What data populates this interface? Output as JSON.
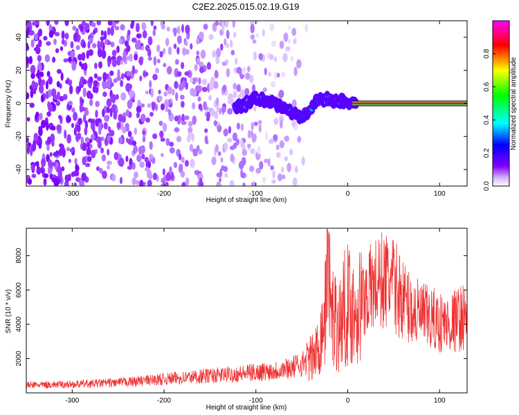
{
  "title": "C2E2.2025.015.02.19.G19",
  "chart_data": [
    {
      "type": "heatmap",
      "xlabel": "Height of straight line (km)",
      "ylabel": "Frequency (Hz)",
      "xlim": [
        -350,
        130
      ],
      "ylim": [
        -50,
        50
      ],
      "xticks": [
        -300,
        -200,
        -100,
        0,
        100
      ],
      "yticks": [
        -40,
        -20,
        0,
        20,
        40
      ],
      "colorbar": {
        "label": "Normalized spectral amplitude",
        "range": [
          0,
          1
        ],
        "ticks": [
          0.0,
          0.2,
          0.4,
          0.6,
          0.8
        ],
        "colormap": [
          "#ffffff",
          "#7f00ff",
          "#0000ff",
          "#00ffff",
          "#00ff00",
          "#ffff00",
          "#ff0000",
          "#ff00ff"
        ]
      },
      "trace": {
        "x": [
          -120,
          -110,
          -100,
          -90,
          -80,
          -70,
          -60,
          -55,
          -50,
          -45,
          -40,
          -35,
          -30,
          -25,
          -20,
          -15,
          -10,
          -5,
          0,
          5,
          10,
          130
        ],
        "frequency": [
          -2,
          0,
          3,
          2,
          0,
          -3,
          -6,
          -7,
          -8,
          -5,
          -4,
          1,
          4,
          2,
          3,
          0,
          1,
          2,
          1,
          0,
          0,
          0
        ]
      }
    },
    {
      "type": "line",
      "xlabel": "Height of straight line (km)",
      "ylabel": "SNR (10 * v/v)",
      "xlim": [
        -350,
        130
      ],
      "ylim": [
        0,
        9600
      ],
      "xticks": [
        -300,
        -200,
        -100,
        0,
        100
      ],
      "yticks": [
        2000,
        4000,
        6000,
        8000
      ],
      "color": "#ee3030",
      "series": [
        {
          "x": [
            -350,
            -300,
            -250,
            -200,
            -150,
            -120,
            -100,
            -80,
            -60,
            -50,
            -40,
            -35,
            -30,
            -25,
            -22,
            -20,
            -15,
            -10,
            -5,
            0,
            5,
            10,
            15,
            20,
            30,
            40,
            50,
            60,
            70,
            80,
            90,
            100,
            110,
            120,
            130
          ],
          "values": [
            450,
            500,
            600,
            800,
            1000,
            1100,
            1200,
            1300,
            1500,
            1700,
            2000,
            2200,
            3200,
            4500,
            5000,
            4200,
            4600,
            3800,
            4800,
            5200,
            4800,
            5000,
            5200,
            5800,
            6300,
            6600,
            6300,
            5500,
            4800,
            4500,
            4300,
            4100,
            4000,
            4300,
            4500
          ]
        }
      ]
    }
  ]
}
